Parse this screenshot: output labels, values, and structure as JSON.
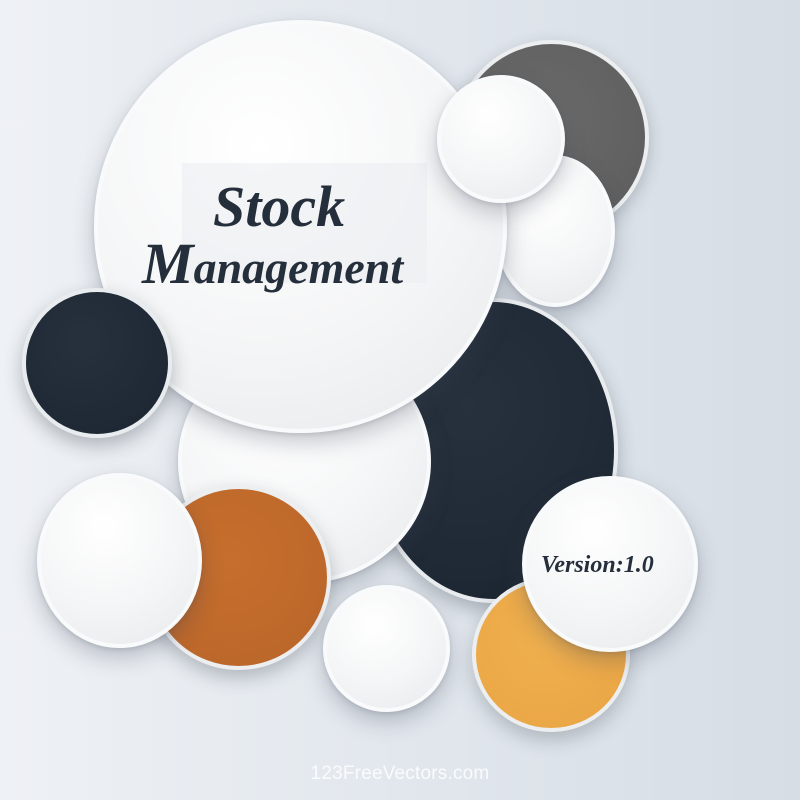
{
  "title": {
    "line1": "Stock",
    "line2_first_letter": "M",
    "line2_rest": "anagement"
  },
  "version_label": "Version:1.0",
  "watermark": "123FreeVectors.com",
  "colors": {
    "navy": "#1f2935",
    "gray": "#5c5c5c",
    "copper": "#b9652a",
    "amber": "#e9a444",
    "white": "#f4f5f6",
    "text": "#252f3b"
  }
}
